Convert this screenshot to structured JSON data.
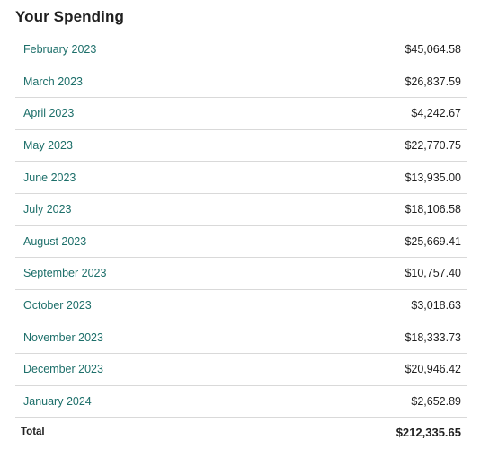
{
  "title": "Your Spending",
  "rows": [
    {
      "month": "February 2023",
      "amount": "$45,064.58"
    },
    {
      "month": "March 2023",
      "amount": "$26,837.59"
    },
    {
      "month": "April 2023",
      "amount": "$4,242.67"
    },
    {
      "month": "May 2023",
      "amount": "$22,770.75"
    },
    {
      "month": "June 2023",
      "amount": "$13,935.00"
    },
    {
      "month": "July 2023",
      "amount": "$18,106.58"
    },
    {
      "month": "August 2023",
      "amount": "$25,669.41"
    },
    {
      "month": "September 2023",
      "amount": "$10,757.40"
    },
    {
      "month": "October 2023",
      "amount": "$3,018.63"
    },
    {
      "month": "November 2023",
      "amount": "$18,333.73"
    },
    {
      "month": "December 2023",
      "amount": "$20,946.42"
    },
    {
      "month": "January 2024",
      "amount": "$2,652.89"
    }
  ],
  "total": {
    "label": "Total",
    "value": "$212,335.65"
  },
  "colors": {
    "link": "#1d6f6a",
    "divider": "#d9d9d9",
    "text": "#1f1f1f"
  }
}
